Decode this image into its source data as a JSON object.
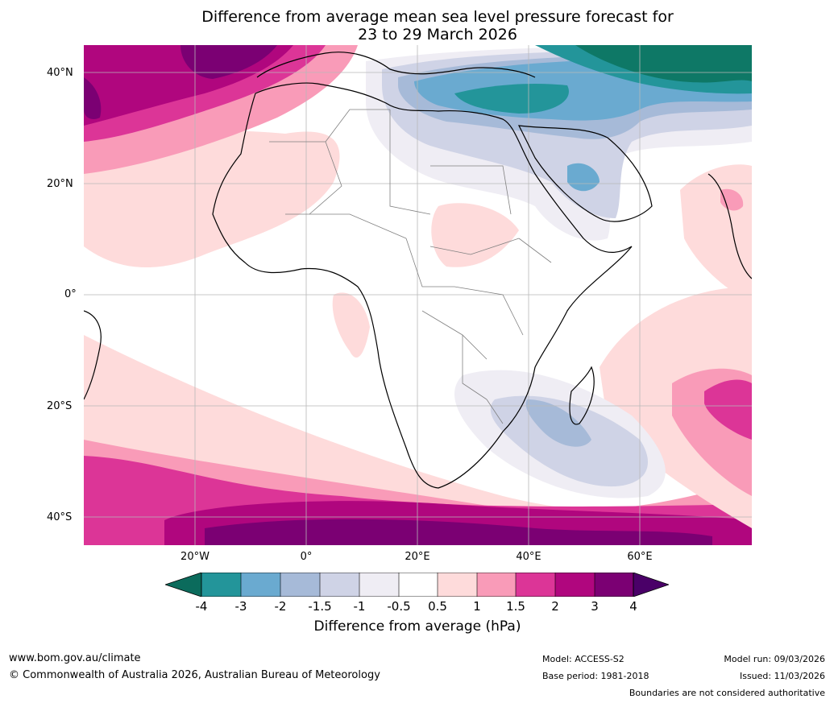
{
  "title": {
    "line1": "Difference from average mean sea level pressure forecast for",
    "line2": "23 to 29 March 2026"
  },
  "map": {
    "region": "Africa",
    "lat_labels": [
      "40°N",
      "20°N",
      "0°",
      "20°S",
      "40°S"
    ],
    "lon_labels": [
      "20°W",
      "0°",
      "20°E",
      "40°E",
      "60°E"
    ]
  },
  "legend": {
    "title": "Difference from average (hPa)",
    "ticks": [
      "-4",
      "-3",
      "-2",
      "-1.5",
      "-1",
      "-0.5",
      "0.5",
      "1",
      "1.5",
      "2",
      "3",
      "4"
    ],
    "colors": [
      "#0e7866",
      "#23959a",
      "#6aaad0",
      "#a6bad8",
      "#cfd3e6",
      "#efedf4",
      "#ffffff",
      "#fedbdb",
      "#f99bb8",
      "#dc3597",
      "#b0067e",
      "#7b0073",
      "#4a0068",
      "#0b6b5c"
    ]
  },
  "footer": {
    "website": "www.bom.gov.au/climate",
    "copyright": "© Commonwealth of Australia 2026, Australian Bureau of Meteorology",
    "model": "Model: ACCESS-S2",
    "base_period": "Base period: 1981-2018",
    "model_run": "Model run: 09/03/2026",
    "issued": "Issued: 11/03/2026",
    "disclaimer": "Boundaries are not considered authoritative"
  }
}
